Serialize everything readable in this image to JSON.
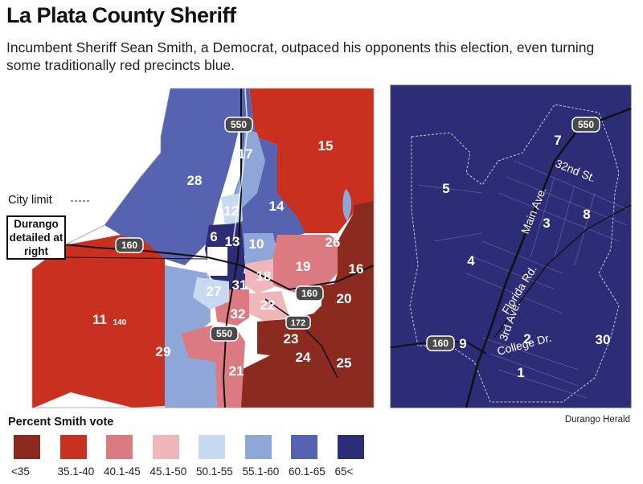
{
  "title": "La Plata County Sheriff",
  "subtitle": "Incumbent Sheriff Sean Smith, a Democrat, outpaced his opponents this election, even turning some traditionally red precincts blue.",
  "annotations": {
    "city_limit": "City limit",
    "durango_box": "Durango detailed at right"
  },
  "credit": "Durango Herald",
  "legend": {
    "title": "Percent Smith vote",
    "items": [
      {
        "label": "<35",
        "color": "#8b2b1f"
      },
      {
        "label": "35.1-40",
        "color": "#c9301f"
      },
      {
        "label": "40.1-45",
        "color": "#db7a80"
      },
      {
        "label": "45.1-50",
        "color": "#efb7b9"
      },
      {
        "label": "50.1-55",
        "color": "#c8daf2"
      },
      {
        "label": "55.1-60",
        "color": "#8ea6d8"
      },
      {
        "label": "60.1-65",
        "color": "#5563b0"
      },
      {
        "label": "65<",
        "color": "#2c2c77"
      }
    ]
  },
  "county_map": {
    "precincts": [
      "28",
      "15",
      "17",
      "12",
      "14",
      "6",
      "13",
      "10",
      "26",
      "19",
      "16",
      "18",
      "27",
      "31",
      "22",
      "20",
      "11",
      "32",
      "23",
      "29",
      "24",
      "25",
      "21"
    ],
    "highways": [
      "550",
      "160",
      "160",
      "172",
      "550"
    ],
    "small_label": "140"
  },
  "durango_map": {
    "precincts": [
      "7",
      "5",
      "3",
      "8",
      "4",
      "9",
      "2",
      "30",
      "1"
    ],
    "streets": [
      "32nd St.",
      "Main Ave.",
      "Florida Rd.",
      "3rd Ave.",
      "College Dr."
    ],
    "highways": [
      "550",
      "160"
    ]
  }
}
